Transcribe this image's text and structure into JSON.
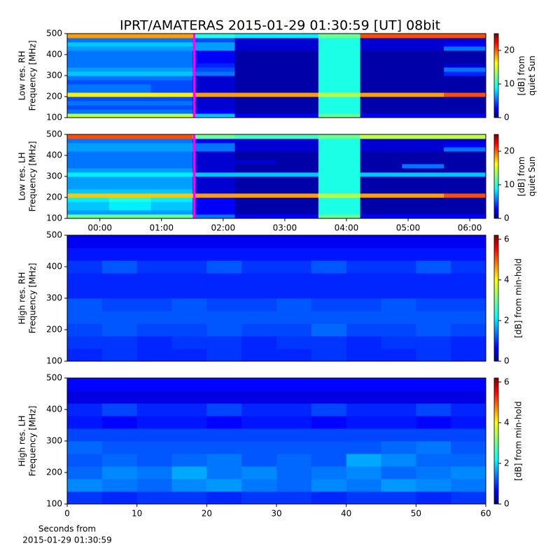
{
  "title": "IPRT/AMATERAS 2015-01-29 01:30:59 [UT]   08bit",
  "chart_data": [
    {
      "type": "heatmap",
      "colormap": "jet",
      "ylabel": [
        "Low res. RH",
        "Frequency [MHz]"
      ],
      "ylim": [
        100,
        500
      ],
      "yticks": [
        100,
        200,
        300,
        400,
        500
      ],
      "xlim": [
        -0.53,
        6.26
      ],
      "vline": 1.53,
      "vline_color": "#ff00ff",
      "clabel": [
        "[dB] from",
        "quiet Sun"
      ],
      "clim": [
        0,
        25
      ],
      "cticks": [
        0,
        10,
        20
      ],
      "z": [
        [
          14,
          14,
          14,
          8,
          3,
          3,
          12,
          3,
          3,
          3
        ],
        [
          6,
          6,
          6,
          3,
          1,
          1,
          10,
          1,
          1,
          1
        ],
        [
          5,
          5,
          5,
          2,
          1,
          1,
          10,
          1,
          1,
          1
        ],
        [
          6,
          6,
          6,
          2,
          1,
          1,
          10,
          1,
          1,
          1
        ],
        [
          5,
          5,
          5,
          2,
          1,
          1,
          10,
          1,
          1,
          1
        ],
        [
          16,
          16,
          16,
          18,
          18,
          18,
          14,
          18,
          18,
          20
        ],
        [
          6,
          6,
          5,
          2,
          1,
          1,
          10,
          1,
          1,
          1
        ],
        [
          6,
          6,
          5,
          2,
          1,
          1,
          10,
          1,
          1,
          1
        ],
        [
          5,
          5,
          5,
          2,
          1,
          1,
          10,
          1,
          1,
          1
        ],
        [
          6,
          6,
          6,
          2,
          1,
          1,
          10,
          1,
          1,
          1
        ],
        [
          8,
          8,
          8,
          6,
          1,
          1,
          10,
          1,
          1,
          4
        ],
        [
          7,
          7,
          7,
          5,
          1,
          1,
          10,
          1,
          1,
          6
        ],
        [
          6,
          6,
          6,
          4,
          1,
          1,
          10,
          1,
          1,
          2
        ],
        [
          6,
          6,
          6,
          3,
          1,
          1,
          10,
          1,
          1,
          1
        ],
        [
          6,
          6,
          6,
          3,
          1,
          1,
          10,
          1,
          1,
          1
        ],
        [
          6,
          6,
          6,
          3,
          1,
          1,
          10,
          1,
          1,
          1
        ],
        [
          7,
          7,
          7,
          7,
          2,
          2,
          10,
          2,
          2,
          6
        ],
        [
          8,
          8,
          8,
          7,
          2,
          2,
          10,
          2,
          2,
          3
        ],
        [
          6,
          6,
          6,
          5,
          2,
          2,
          10,
          2,
          2,
          2
        ],
        [
          18,
          18,
          18,
          10,
          9,
          9,
          12,
          20,
          20,
          20
        ]
      ]
    },
    {
      "type": "heatmap",
      "colormap": "jet",
      "ylabel": [
        "Low res. LH",
        "Frequency [MHz]"
      ],
      "ylim": [
        100,
        500
      ],
      "yticks": [
        100,
        200,
        300,
        400,
        500
      ],
      "xlim": [
        -0.53,
        6.26
      ],
      "xticks": [
        {
          "value": 0,
          "label": "00:00"
        },
        {
          "value": 1,
          "label": "01:00"
        },
        {
          "value": 2,
          "label": "02:00"
        },
        {
          "value": 3,
          "label": "03:00"
        },
        {
          "value": 4,
          "label": "04:00"
        },
        {
          "value": 5,
          "label": "05:00"
        },
        {
          "value": 6,
          "label": "06:00"
        }
      ],
      "vline": 1.53,
      "vline_color": "#ff00ff",
      "clabel": [
        "[dB] from",
        "quiet Sun"
      ],
      "clim": [
        0,
        25
      ],
      "cticks": [
        0,
        10,
        20
      ],
      "z": [
        [
          12,
          12,
          12,
          6,
          3,
          3,
          12,
          3,
          3,
          3
        ],
        [
          7,
          7,
          7,
          3,
          1,
          1,
          10,
          1,
          1,
          1
        ],
        [
          8,
          9,
          8,
          3,
          1,
          1,
          10,
          1,
          1,
          1
        ],
        [
          8,
          9,
          8,
          3,
          1,
          1,
          10,
          1,
          1,
          1
        ],
        [
          9,
          10,
          9,
          3,
          1,
          1,
          10,
          1,
          1,
          1
        ],
        [
          17,
          17,
          17,
          18,
          18,
          18,
          14,
          18,
          18,
          20
        ],
        [
          8,
          8,
          8,
          2,
          1,
          1,
          10,
          1,
          1,
          1
        ],
        [
          7,
          7,
          7,
          2,
          1,
          1,
          10,
          1,
          1,
          1
        ],
        [
          7,
          7,
          7,
          2,
          1,
          1,
          10,
          1,
          1,
          1
        ],
        [
          7,
          7,
          7,
          2,
          1,
          1,
          10,
          1,
          1,
          1
        ],
        [
          9,
          9,
          9,
          8,
          8,
          8,
          10,
          8,
          8,
          8
        ],
        [
          7,
          7,
          7,
          2,
          1,
          1,
          10,
          1,
          1,
          1
        ],
        [
          6,
          6,
          6,
          2,
          1,
          1,
          10,
          1,
          6,
          1
        ],
        [
          6,
          6,
          6,
          2,
          2,
          1,
          10,
          1,
          1,
          1
        ],
        [
          6,
          6,
          6,
          2,
          1,
          1,
          10,
          1,
          1,
          1
        ],
        [
          6,
          6,
          6,
          2,
          1,
          1,
          10,
          1,
          1,
          1
        ],
        [
          7,
          7,
          7,
          6,
          2,
          2,
          10,
          2,
          2,
          6
        ],
        [
          7,
          7,
          7,
          6,
          2,
          2,
          10,
          2,
          2,
          3
        ],
        [
          6,
          6,
          6,
          3,
          2,
          2,
          10,
          2,
          2,
          2
        ],
        [
          20,
          20,
          20,
          12,
          11,
          11,
          12,
          14,
          14,
          14
        ]
      ]
    },
    {
      "type": "heatmap",
      "colormap": "jet",
      "ylabel": [
        "High res. RH",
        "Frequency [MHz]"
      ],
      "ylim": [
        100,
        500
      ],
      "yticks": [
        100,
        200,
        300,
        400,
        500
      ],
      "xlim": [
        0,
        60
      ],
      "clabel": [
        "[dB] from min-hold"
      ],
      "clim": [
        0,
        6.2
      ],
      "cticks": [
        0,
        2,
        4,
        6
      ],
      "z": [
        [
          1.0,
          1.1,
          1.0,
          1.0,
          1.1,
          1.0,
          1.0,
          1.1,
          1.0,
          1.0,
          1.1,
          1.0
        ],
        [
          1.1,
          1.1,
          1.0,
          1.1,
          1.1,
          1.0,
          1.1,
          1.1,
          1.0,
          1.1,
          1.1,
          1.0
        ],
        [
          1.2,
          1.3,
          1.2,
          1.2,
          1.3,
          1.2,
          1.2,
          1.4,
          1.2,
          1.2,
          1.3,
          1.2
        ],
        [
          1.3,
          1.3,
          1.3,
          1.3,
          1.3,
          1.3,
          1.3,
          1.3,
          1.3,
          1.3,
          1.3,
          1.3
        ],
        [
          1.3,
          1.2,
          1.2,
          1.3,
          1.2,
          1.2,
          1.3,
          1.2,
          1.2,
          1.3,
          1.2,
          1.2
        ],
        [
          1.0,
          1.0,
          1.0,
          1.0,
          1.0,
          1.0,
          1.0,
          1.0,
          1.0,
          1.0,
          1.0,
          1.0
        ],
        [
          1.0,
          1.0,
          1.0,
          1.0,
          1.0,
          1.0,
          1.0,
          1.0,
          1.0,
          1.0,
          1.0,
          1.0
        ],
        [
          1.1,
          1.3,
          1.1,
          1.1,
          1.3,
          1.1,
          1.1,
          1.3,
          1.1,
          1.1,
          1.3,
          1.1
        ],
        [
          0.9,
          0.9,
          0.9,
          0.9,
          0.9,
          0.9,
          0.9,
          0.9,
          0.9,
          0.9,
          0.9,
          0.9
        ],
        [
          0.7,
          0.7,
          0.7,
          0.7,
          0.7,
          0.7,
          0.7,
          0.7,
          0.7,
          0.7,
          0.7,
          0.7
        ]
      ]
    },
    {
      "type": "heatmap",
      "colormap": "jet",
      "ylabel": [
        "High res. LH",
        "Frequency [MHz]"
      ],
      "ylim": [
        100,
        500
      ],
      "yticks": [
        100,
        200,
        300,
        400,
        500
      ],
      "xlim": [
        0,
        60
      ],
      "xticks": [
        0,
        10,
        20,
        30,
        40,
        50,
        60
      ],
      "xlabel": [
        "Seconds from",
        "2015-01-29 01:30:59"
      ],
      "clabel": [
        "[dB] from min-hold"
      ],
      "clim": [
        0,
        6.2
      ],
      "cticks": [
        0,
        2,
        4,
        6
      ],
      "z": [
        [
          1.1,
          1.0,
          1.1,
          1.1,
          1.0,
          1.1,
          1.1,
          1.0,
          1.1,
          1.1,
          1.0,
          1.1
        ],
        [
          1.6,
          1.5,
          1.4,
          1.6,
          1.7,
          1.5,
          1.4,
          1.6,
          1.5,
          1.7,
          1.6,
          1.5
        ],
        [
          1.4,
          1.6,
          1.5,
          1.8,
          1.5,
          1.6,
          1.4,
          1.5,
          1.6,
          1.4,
          1.5,
          1.6
        ],
        [
          1.3,
          1.4,
          1.3,
          1.4,
          1.5,
          1.3,
          1.4,
          1.3,
          1.8,
          1.6,
          1.4,
          1.4
        ],
        [
          1.4,
          1.3,
          1.3,
          1.3,
          1.3,
          1.3,
          1.3,
          1.3,
          1.3,
          1.4,
          1.5,
          1.3
        ],
        [
          1.2,
          1.2,
          1.2,
          1.2,
          1.2,
          1.2,
          1.2,
          1.2,
          1.2,
          1.2,
          1.2,
          1.2
        ],
        [
          0.9,
          0.8,
          0.9,
          0.9,
          0.8,
          0.9,
          0.9,
          0.8,
          0.9,
          0.9,
          0.8,
          0.9
        ],
        [
          1.0,
          1.2,
          1.0,
          1.0,
          1.2,
          1.0,
          1.0,
          1.2,
          1.0,
          1.0,
          1.2,
          1.0
        ],
        [
          0.6,
          0.6,
          0.6,
          0.6,
          0.6,
          0.6,
          0.6,
          0.6,
          0.6,
          0.6,
          0.6,
          0.6
        ],
        [
          0.8,
          0.8,
          0.8,
          0.8,
          0.8,
          0.8,
          0.8,
          0.8,
          0.8,
          0.8,
          0.8,
          0.8
        ]
      ]
    }
  ]
}
